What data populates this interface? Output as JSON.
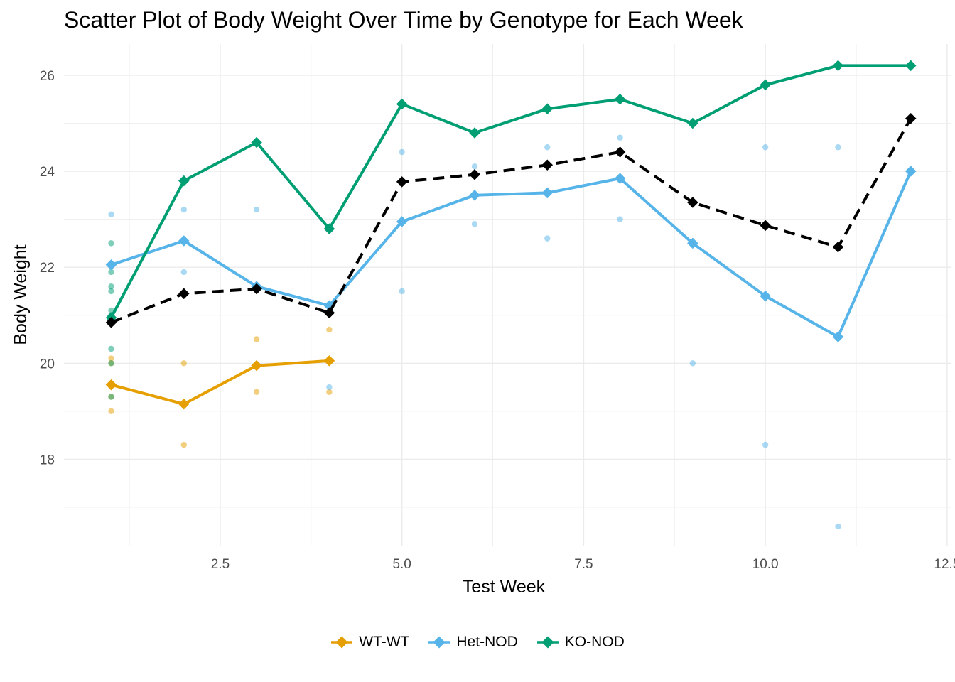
{
  "chart_data": {
    "type": "scatter",
    "title": "Scatter Plot of Body Weight Over Time by Genotype for Each Week",
    "xlabel": "Test Week",
    "ylabel": "Body Weight",
    "xlim": [
      0.35,
      12.55
    ],
    "ylim": [
      16.2,
      26.65
    ],
    "x_ticks": [
      2.5,
      5.0,
      7.5,
      10.0,
      12.5
    ],
    "x_tick_labels": [
      "2.5",
      "5.0",
      "7.5",
      "10.0",
      "12.5"
    ],
    "y_ticks": [
      18,
      20,
      22,
      24,
      26
    ],
    "y_tick_labels": [
      "18",
      "20",
      "22",
      "24",
      "26"
    ],
    "grid": true,
    "legend_position": "bottom",
    "series": [
      {
        "name": "WT-WT",
        "color": "#E69F00",
        "mean_x": [
          1,
          2,
          3,
          4
        ],
        "mean_y": [
          19.55,
          19.15,
          19.95,
          20.05
        ],
        "points": [
          [
            1,
            20.1
          ],
          [
            1,
            20.0
          ],
          [
            1,
            19.3
          ],
          [
            1,
            19.0
          ],
          [
            2,
            20.0
          ],
          [
            2,
            18.3
          ],
          [
            3,
            20.5
          ],
          [
            3,
            19.4
          ],
          [
            4,
            20.7
          ],
          [
            4,
            19.4
          ]
        ]
      },
      {
        "name": "Het-NOD",
        "color": "#56B4E9",
        "mean_x": [
          1,
          2,
          3,
          4,
          5,
          6,
          7,
          8,
          9,
          10,
          11,
          12
        ],
        "mean_y": [
          22.05,
          22.55,
          21.6,
          21.2,
          22.95,
          23.5,
          23.55,
          23.85,
          22.5,
          21.4,
          20.55,
          24.0
        ],
        "points": [
          [
            1,
            23.1
          ],
          [
            1,
            21.0
          ],
          [
            2,
            23.2
          ],
          [
            2,
            21.9
          ],
          [
            3,
            23.2
          ],
          [
            4,
            19.5
          ],
          [
            5,
            24.4
          ],
          [
            5,
            21.5
          ],
          [
            6,
            24.1
          ],
          [
            6,
            22.9
          ],
          [
            7,
            24.5
          ],
          [
            7,
            22.6
          ],
          [
            8,
            24.7
          ],
          [
            8,
            23.0
          ],
          [
            9,
            20.0
          ],
          [
            10,
            24.5
          ],
          [
            10,
            18.3
          ],
          [
            11,
            24.5
          ],
          [
            11,
            16.6
          ]
        ]
      },
      {
        "name": "KO-NOD",
        "color": "#009E73",
        "mean_x": [
          1,
          2,
          3,
          4,
          5,
          6,
          7,
          8,
          9,
          10,
          11,
          12
        ],
        "mean_y": [
          20.95,
          23.8,
          24.6,
          22.8,
          25.4,
          24.8,
          25.3,
          25.5,
          25.0,
          25.8,
          26.2,
          26.2
        ],
        "points": [
          [
            1,
            22.5
          ],
          [
            1,
            21.9
          ],
          [
            1,
            21.6
          ],
          [
            1,
            21.5
          ],
          [
            1,
            21.1
          ],
          [
            1,
            21.0
          ],
          [
            1,
            20.3
          ],
          [
            1,
            20.0
          ],
          [
            1,
            19.3
          ],
          [
            4,
            22.8
          ]
        ]
      }
    ],
    "overall_mean": {
      "color": "#000000",
      "style": "dashed",
      "x": [
        1,
        2,
        3,
        4,
        5,
        6,
        7,
        8,
        9,
        10,
        11,
        12
      ],
      "y": [
        20.85,
        21.45,
        21.55,
        21.05,
        23.78,
        23.93,
        24.13,
        24.4,
        23.35,
        22.87,
        22.42,
        25.1
      ]
    }
  }
}
